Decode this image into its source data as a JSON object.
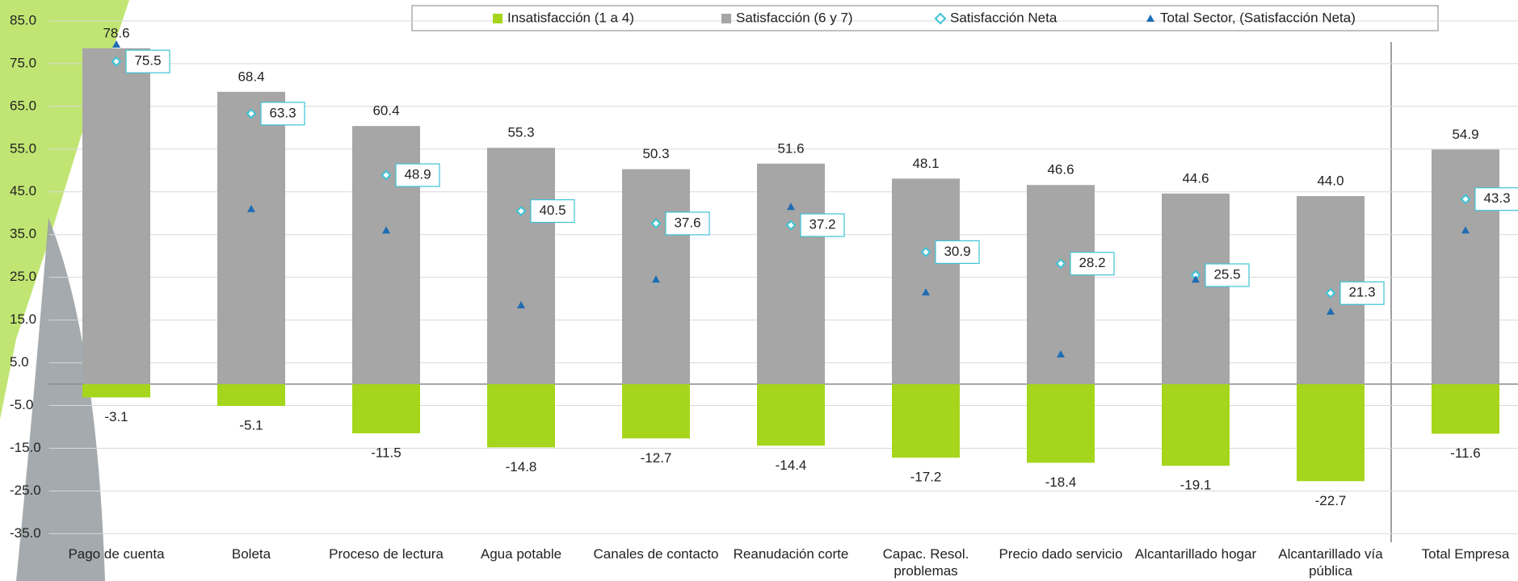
{
  "chart_data": {
    "type": "bar",
    "categories": [
      "Pago de cuenta",
      "Boleta",
      "Proceso de lectura",
      "Agua potable",
      "Canales de contacto",
      "Reanudación corte",
      "Capac. Resol. problemas",
      "Precio dado servicio",
      "Alcantarillado hogar",
      "Alcantarillado vía pública",
      "Total Empresa"
    ],
    "series": [
      {
        "name": "Insatisfacción (1 a 4)",
        "type": "bar",
        "color": "#a5d61b",
        "values": [
          -3.1,
          -5.1,
          -11.5,
          -14.8,
          -12.7,
          -14.4,
          -17.2,
          -18.4,
          -19.1,
          -22.7,
          -11.6
        ]
      },
      {
        "name": "Satisfacción (6 y 7)",
        "type": "bar",
        "color": "#a6a6a6",
        "values": [
          78.6,
          68.4,
          60.4,
          55.3,
          50.3,
          51.6,
          48.1,
          46.6,
          44.6,
          44.0,
          54.9
        ],
        "value_labels": [
          "78.6",
          "68.4",
          "60.4",
          "55.3",
          "50.3",
          "51.6",
          "48.1",
          "46.6",
          "44.6",
          "44.0",
          "54.9"
        ]
      },
      {
        "name": "Satisfacción Neta",
        "type": "scatter",
        "marker": "diamond",
        "color": "#3cc3d6",
        "values": [
          75.5,
          63.3,
          48.9,
          40.5,
          37.6,
          37.2,
          30.9,
          28.2,
          25.5,
          21.3,
          43.3
        ]
      },
      {
        "name": "Total Sector, (Satisfacción Neta)",
        "type": "scatter",
        "marker": "triangle",
        "color": "#1f6db3",
        "values": [
          79.5,
          41,
          36,
          18.5,
          24.5,
          41.5,
          21.5,
          7,
          24.5,
          17,
          36
        ]
      }
    ],
    "ylim": [
      -37,
      88
    ],
    "yticks": [
      {
        "value": 85,
        "label": "85.0"
      },
      {
        "value": 75,
        "label": "75.0"
      },
      {
        "value": 65,
        "label": "65.0"
      },
      {
        "value": 55,
        "label": "55.0"
      },
      {
        "value": 45,
        "label": "45.0"
      },
      {
        "value": 35,
        "label": "35.0"
      },
      {
        "value": 25,
        "label": "25.0"
      },
      {
        "value": 15,
        "label": "15.0"
      },
      {
        "value": 5,
        "label": "5.0"
      },
      {
        "value": -5,
        "label": "-5.0"
      },
      {
        "value": -15,
        "label": "-15.0"
      },
      {
        "value": -25,
        "label": "-25.0"
      },
      {
        "value": -35,
        "label": "-35.0"
      }
    ],
    "grid": true,
    "legend": "top"
  }
}
